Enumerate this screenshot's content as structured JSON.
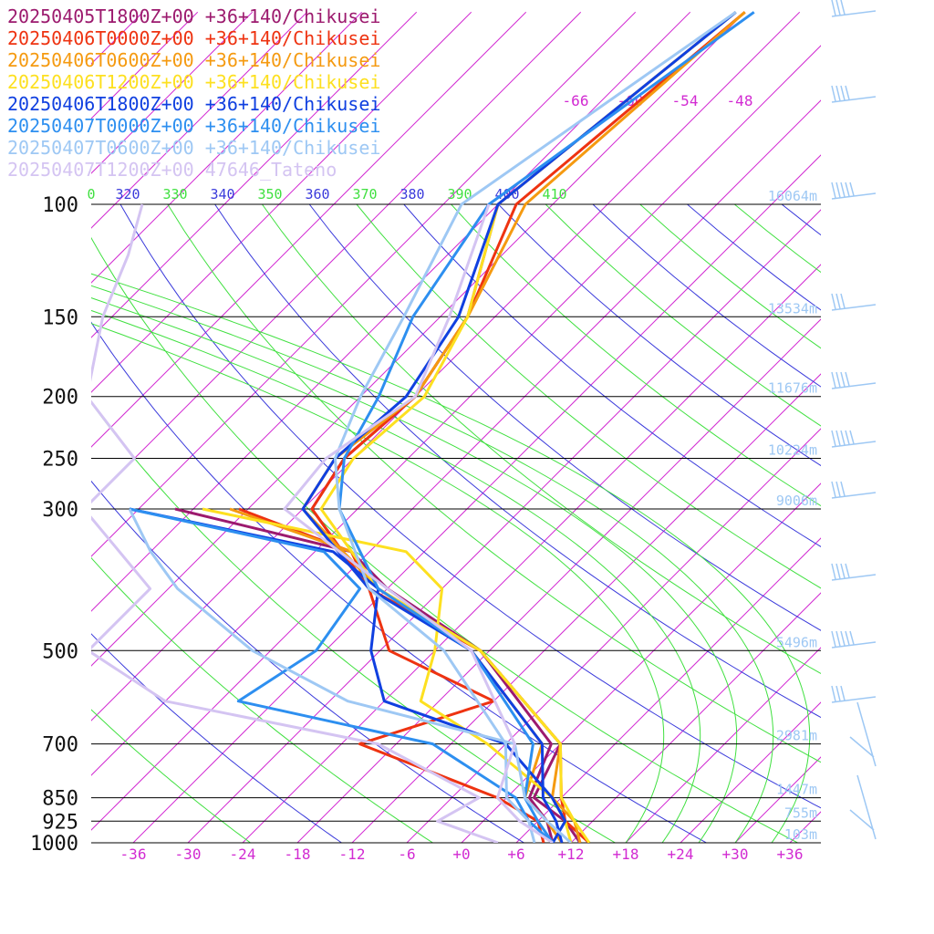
{
  "chart_data": {
    "type": "line",
    "title": "",
    "xlabel": "",
    "ylabel": "",
    "x_axis": {
      "label": "",
      "ticks": [
        "-36",
        "-30",
        "-24",
        "-18",
        "-12",
        "-6",
        "+0",
        "+6",
        "+12",
        "+18",
        "+24",
        "+30",
        "+36"
      ],
      "range": [
        -40,
        40
      ]
    },
    "y_axis": {
      "label": "",
      "scale": "log",
      "ticks": [
        "100",
        "150",
        "200",
        "250",
        "300",
        "500",
        "700",
        "850",
        "925",
        "1000"
      ],
      "range": [
        1000,
        100
      ]
    },
    "height_labels": [
      {
        "p": 100,
        "label": "16064m"
      },
      {
        "p": 150,
        "label": "13534m"
      },
      {
        "p": 200,
        "label": "11676m"
      },
      {
        "p": 250,
        "label": "10224m"
      },
      {
        "p": 300,
        "label": "9006m"
      },
      {
        "p": 500,
        "label": "5496m"
      },
      {
        "p": 700,
        "label": "2981m"
      },
      {
        "p": 850,
        "label": "1447m"
      },
      {
        "p": 925,
        "label": "755m"
      },
      {
        "p": 1000,
        "label": "103m"
      }
    ],
    "isotherm_top_labels": [
      "-66",
      "-60",
      "-54",
      "-48"
    ],
    "isentrope_labels": [
      "0",
      "320",
      "330",
      "340",
      "350",
      "360",
      "370",
      "380",
      "390",
      "400",
      "410"
    ],
    "legend_position": "top-left",
    "grid": true,
    "series": [
      {
        "name": "20250405T1800Z+00 +36+140/Chikusei",
        "color": "#9c1a6e",
        "temperature": [
          [
            1000,
            13
          ],
          [
            925,
            9
          ],
          [
            850,
            3
          ],
          [
            700,
            0
          ],
          [
            500,
            -19
          ],
          [
            400,
            -38
          ],
          [
            300,
            -53
          ],
          [
            250,
            -55
          ],
          [
            200,
            -54
          ],
          [
            150,
            -57
          ],
          [
            100,
            -66
          ],
          [
            50,
            -61
          ]
        ],
        "dewpoint": [
          [
            1000,
            10
          ],
          [
            925,
            7
          ],
          [
            850,
            2.5
          ],
          [
            700,
            -1
          ],
          [
            500,
            -19
          ],
          [
            400,
            -36
          ],
          [
            350,
            -44
          ],
          [
            300,
            -68
          ]
        ]
      },
      {
        "name": "20250406T0000Z+00 +36+140/Chikusei",
        "color": "#ee3311",
        "temperature": [
          [
            1000,
            14
          ],
          [
            925,
            9
          ],
          [
            850,
            6
          ],
          [
            700,
            0
          ],
          [
            500,
            -19
          ],
          [
            400,
            -38
          ],
          [
            300,
            -53
          ],
          [
            250,
            -55
          ],
          [
            200,
            -54
          ],
          [
            150,
            -57
          ],
          [
            100,
            -64
          ],
          [
            50,
            -60
          ]
        ],
        "dewpoint": [
          [
            1000,
            9
          ],
          [
            925,
            6
          ],
          [
            850,
            -1
          ],
          [
            700,
            -22
          ],
          [
            600,
            -12
          ],
          [
            500,
            -29
          ],
          [
            400,
            -38
          ],
          [
            350,
            -44
          ],
          [
            300,
            -61
          ]
        ]
      },
      {
        "name": "20250406T0600Z+00 +36+140/Chikusei",
        "color": "#f59a10",
        "temperature": [
          [
            1000,
            13
          ],
          [
            925,
            10
          ],
          [
            850,
            5
          ],
          [
            700,
            0
          ],
          [
            500,
            -19
          ],
          [
            400,
            -37
          ],
          [
            300,
            -54
          ],
          [
            250,
            -56
          ],
          [
            200,
            -54
          ],
          [
            150,
            -57
          ],
          [
            100,
            -63
          ],
          [
            50,
            -60
          ]
        ],
        "dewpoint": [
          [
            1000,
            11
          ],
          [
            925,
            7
          ],
          [
            850,
            2
          ],
          [
            700,
            -2
          ],
          [
            500,
            -20
          ],
          [
            400,
            -37
          ],
          [
            350,
            -44
          ],
          [
            300,
            -62
          ]
        ]
      },
      {
        "name": "20250406T1200Z+00 +36+140/Chikusei",
        "color": "#fde020",
        "temperature": [
          [
            1000,
            14
          ],
          [
            925,
            10
          ],
          [
            850,
            6
          ],
          [
            700,
            0
          ],
          [
            500,
            -19
          ],
          [
            400,
            -37
          ],
          [
            300,
            -52
          ],
          [
            250,
            -54
          ],
          [
            200,
            -53
          ],
          [
            150,
            -57
          ],
          [
            100,
            -66
          ],
          [
            50,
            -61
          ]
        ],
        "dewpoint": [
          [
            1000,
            12
          ],
          [
            925,
            9
          ],
          [
            850,
            5
          ],
          [
            700,
            -8
          ],
          [
            600,
            -20
          ],
          [
            500,
            -24
          ],
          [
            400,
            -30
          ],
          [
            350,
            -38
          ],
          [
            300,
            -65
          ]
        ]
      },
      {
        "name": "20250406T1800Z+00 +36+140/Chikusei",
        "color": "#1040e0",
        "temperature": [
          [
            1000,
            11
          ],
          [
            925,
            8
          ],
          [
            850,
            4
          ],
          [
            700,
            -2
          ],
          [
            500,
            -20
          ],
          [
            400,
            -38
          ],
          [
            300,
            -54
          ],
          [
            250,
            -56
          ],
          [
            200,
            -55
          ],
          [
            150,
            -58
          ],
          [
            100,
            -66
          ],
          [
            50,
            -61
          ]
        ],
        "dewpoint": [
          [
            1000,
            10
          ],
          [
            925,
            9
          ],
          [
            850,
            5
          ],
          [
            700,
            -6
          ],
          [
            600,
            -24
          ],
          [
            500,
            -31
          ],
          [
            400,
            -37
          ],
          [
            350,
            -46
          ],
          [
            300,
            -73
          ]
        ]
      },
      {
        "name": "20250407T0000Z+00 +36+140/Chikusei",
        "color": "#2d8ff0",
        "temperature": [
          [
            1000,
            10
          ],
          [
            925,
            6
          ],
          [
            850,
            2
          ],
          [
            700,
            -3
          ],
          [
            500,
            -20
          ],
          [
            400,
            -37
          ],
          [
            300,
            -50
          ],
          [
            250,
            -55
          ],
          [
            200,
            -58
          ],
          [
            150,
            -63
          ],
          [
            100,
            -67
          ],
          [
            50,
            -59
          ]
        ],
        "dewpoint": [
          [
            1000,
            10
          ],
          [
            925,
            5
          ],
          [
            850,
            1
          ],
          [
            700,
            -14
          ],
          [
            600,
            -40
          ],
          [
            500,
            -37
          ],
          [
            400,
            -39
          ],
          [
            350,
            -47
          ],
          [
            300,
            -73
          ]
        ]
      },
      {
        "name": "20250407T0600Z+00 +36+140/Chikusei",
        "color": "#9ec8f4",
        "temperature": [
          [
            1000,
            8
          ],
          [
            925,
            5
          ],
          [
            850,
            0
          ],
          [
            700,
            -6
          ],
          [
            500,
            -23
          ],
          [
            400,
            -38
          ],
          [
            300,
            -50
          ],
          [
            250,
            -56
          ],
          [
            200,
            -60
          ],
          [
            150,
            -64
          ],
          [
            100,
            -70
          ],
          [
            50,
            -61
          ]
        ],
        "dewpoint": [
          [
            1000,
            12
          ],
          [
            925,
            7
          ],
          [
            850,
            2
          ],
          [
            700,
            -5
          ],
          [
            600,
            -28
          ],
          [
            500,
            -44
          ],
          [
            400,
            -59
          ],
          [
            350,
            -66
          ],
          [
            300,
            -73
          ]
        ]
      },
      {
        "name": "20250407T1200Z+00 47646_Tateno",
        "color": "#d4c4f2",
        "temperature": [
          [
            1000,
            10
          ],
          [
            925,
            4
          ],
          [
            850,
            -1
          ],
          [
            700,
            -5
          ],
          [
            500,
            -20
          ],
          [
            400,
            -36
          ],
          [
            300,
            -56
          ],
          [
            250,
            -57
          ],
          [
            200,
            -54
          ],
          [
            150,
            -59
          ],
          [
            100,
            -67
          ]
        ],
        "dewpoint": [
          [
            1000,
            4
          ],
          [
            925,
            -5
          ],
          [
            850,
            -3
          ],
          [
            700,
            -20
          ],
          [
            600,
            -48
          ],
          [
            500,
            -62
          ],
          [
            400,
            -62
          ],
          [
            300,
            -78
          ],
          [
            250,
            -78
          ],
          [
            200,
            -90
          ],
          [
            150,
            -97
          ],
          [
            120,
            -101
          ],
          [
            100,
            -105
          ]
        ]
      }
    ],
    "wind_barbs_color": "#9ec8f4"
  }
}
